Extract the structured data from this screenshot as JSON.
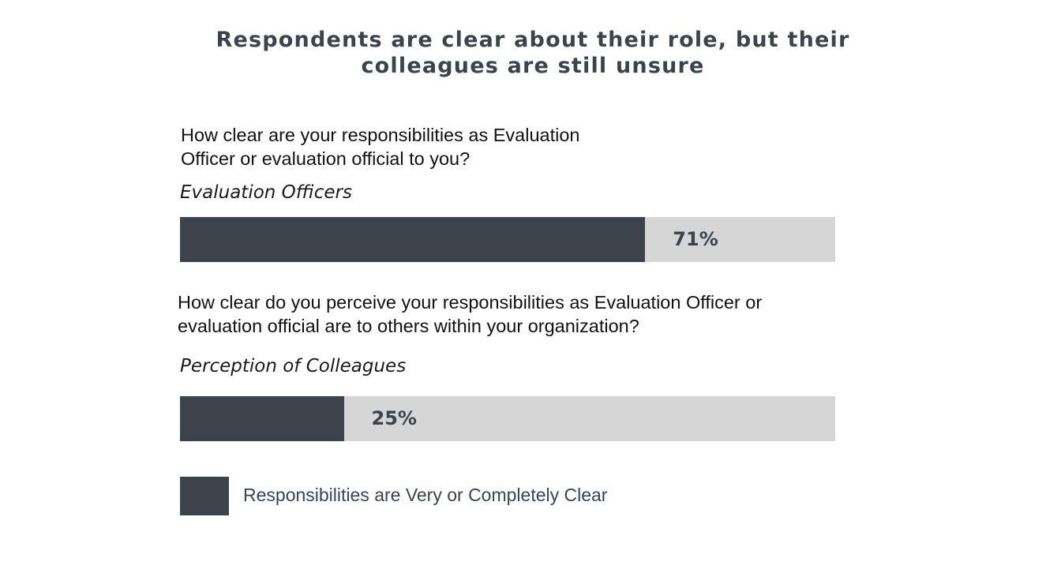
{
  "chart_data": {
    "type": "bar",
    "orientation": "horizontal",
    "title": "Respondents are clear about their role, but their colleagues are still unsure",
    "questions": [
      "How clear are your responsibilities as Evaluation Officer or evaluation official to you?",
      "How clear do you perceive your responsibilities as Evaluation Officer or evaluation official are to others within your organization?"
    ],
    "categories": [
      "Evaluation Officers",
      "Perception of Colleagues"
    ],
    "series": [
      {
        "name": "Responsibilities are Very or Completely Clear",
        "values": [
          71,
          25
        ],
        "labels": [
          "71%",
          "25%"
        ],
        "color": "#3c434a"
      }
    ],
    "remainder_color": "#d6d6d6",
    "xlim": [
      0,
      100
    ],
    "legend": "bottom-left"
  }
}
